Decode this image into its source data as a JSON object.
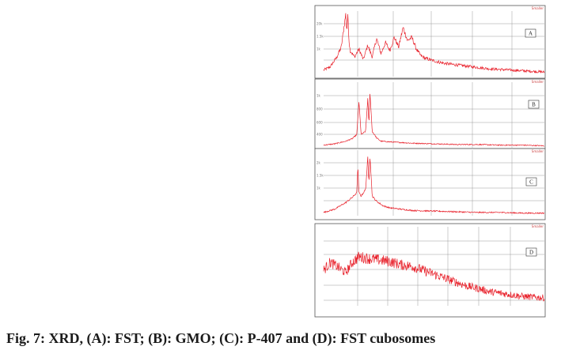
{
  "caption": "Fig. 7: XRD, (A): FST; (B): GMO; (C): P-407 and (D): FST cubosomes",
  "colors": {
    "trace": "#e8202a",
    "grid": "#9a9a9a",
    "frame": "#555555"
  },
  "chart_data": [
    {
      "type": "line",
      "panel": "A",
      "x_tick_labels": [],
      "y_tick_labels": [
        "20k",
        "1.5k",
        "1k"
      ],
      "corner_label": "Smaller",
      "xlim": [
        0,
        1
      ],
      "ylim": [
        0,
        1
      ],
      "series": [
        {
          "x": [
            0.0,
            0.03,
            0.06,
            0.08,
            0.09,
            0.1,
            0.105,
            0.11,
            0.115,
            0.12,
            0.14,
            0.16,
            0.18,
            0.2,
            0.22,
            0.24,
            0.26,
            0.28,
            0.3,
            0.32,
            0.34,
            0.36,
            0.38,
            0.4,
            0.42,
            0.44,
            0.46,
            0.5,
            0.55,
            0.6,
            0.65,
            0.7,
            0.75,
            0.8,
            0.85,
            0.9,
            0.95,
            1.0
          ],
          "y": [
            0.1,
            0.15,
            0.3,
            0.45,
            0.7,
            0.95,
            0.7,
            0.93,
            0.55,
            0.4,
            0.3,
            0.42,
            0.26,
            0.48,
            0.3,
            0.58,
            0.35,
            0.52,
            0.4,
            0.6,
            0.45,
            0.75,
            0.55,
            0.6,
            0.42,
            0.32,
            0.28,
            0.24,
            0.2,
            0.18,
            0.16,
            0.14,
            0.12,
            0.11,
            0.1,
            0.09,
            0.08,
            0.07
          ]
        }
      ]
    },
    {
      "type": "line",
      "panel": "B",
      "x_tick_labels": [],
      "y_tick_labels": [
        "1k",
        "800",
        "600",
        "400"
      ],
      "corner_label": "Smaller",
      "xlim": [
        0,
        1
      ],
      "ylim": [
        0,
        1
      ],
      "series": [
        {
          "x": [
            0.0,
            0.05,
            0.1,
            0.13,
            0.15,
            0.16,
            0.17,
            0.19,
            0.2,
            0.205,
            0.21,
            0.22,
            0.24,
            0.26,
            0.3,
            0.35,
            0.4,
            0.5,
            0.6,
            0.7,
            0.8,
            0.9,
            1.0
          ],
          "y": [
            0.04,
            0.06,
            0.1,
            0.14,
            0.2,
            0.7,
            0.2,
            0.25,
            0.75,
            0.35,
            0.85,
            0.25,
            0.15,
            0.1,
            0.09,
            0.08,
            0.07,
            0.06,
            0.05,
            0.05,
            0.04,
            0.04,
            0.03
          ]
        }
      ]
    },
    {
      "type": "line",
      "panel": "C",
      "x_tick_labels": [],
      "y_tick_labels": [
        "2k",
        "1.5k",
        "1k"
      ],
      "corner_label": "Smaller",
      "xlim": [
        0,
        1
      ],
      "ylim": [
        0,
        1
      ],
      "series": [
        {
          "x": [
            0.0,
            0.05,
            0.1,
            0.13,
            0.15,
            0.155,
            0.16,
            0.17,
            0.19,
            0.2,
            0.205,
            0.21,
            0.22,
            0.24,
            0.27,
            0.3,
            0.35,
            0.4,
            0.5,
            0.6,
            0.7,
            0.8,
            0.9,
            1.0
          ],
          "y": [
            0.05,
            0.1,
            0.2,
            0.28,
            0.35,
            0.75,
            0.35,
            0.3,
            0.4,
            0.88,
            0.5,
            0.92,
            0.3,
            0.22,
            0.15,
            0.12,
            0.1,
            0.08,
            0.07,
            0.06,
            0.05,
            0.05,
            0.04,
            0.04
          ]
        }
      ]
    },
    {
      "type": "line",
      "panel": "D",
      "x_tick_labels": [],
      "y_tick_labels": [],
      "corner_label": "Smaller",
      "xlim": [
        0,
        1
      ],
      "ylim": [
        0,
        1
      ],
      "series": [
        {
          "x": [
            0.0,
            0.03,
            0.06,
            0.1,
            0.13,
            0.16,
            0.2,
            0.25,
            0.3,
            0.35,
            0.4,
            0.45,
            0.5,
            0.55,
            0.6,
            0.65,
            0.7,
            0.75,
            0.8,
            0.85,
            0.9,
            0.95,
            1.0
          ],
          "y": [
            0.45,
            0.55,
            0.5,
            0.42,
            0.55,
            0.62,
            0.6,
            0.58,
            0.56,
            0.52,
            0.5,
            0.45,
            0.4,
            0.35,
            0.3,
            0.25,
            0.22,
            0.18,
            0.16,
            0.14,
            0.12,
            0.11,
            0.1
          ]
        }
      ]
    }
  ]
}
